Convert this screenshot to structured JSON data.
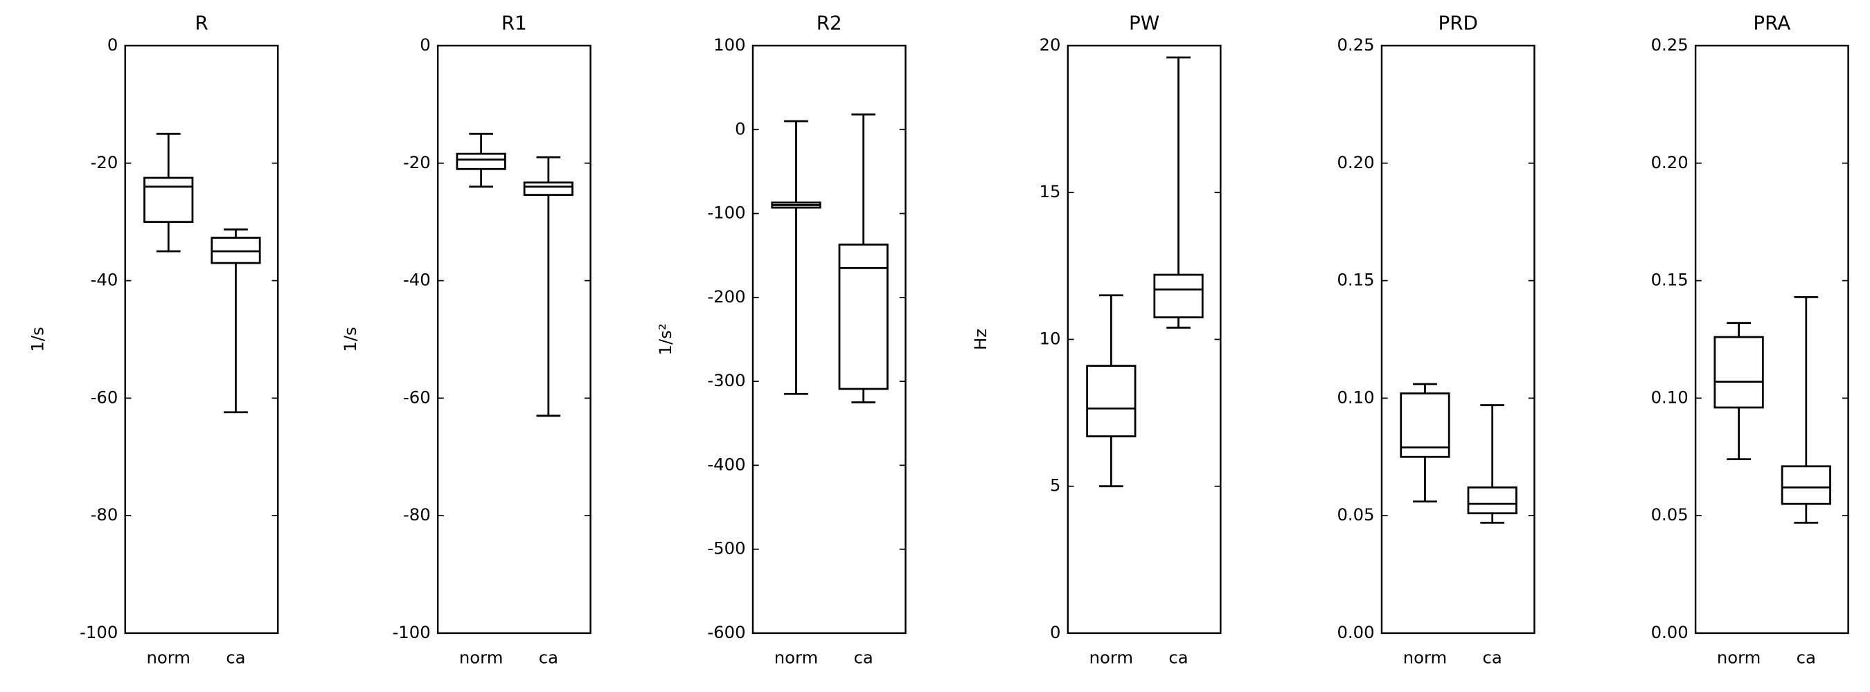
{
  "chart_data": [
    {
      "type": "box",
      "title": "R",
      "ylabel": "1/s",
      "categories": [
        "norm",
        "ca"
      ],
      "ylim": [
        -100,
        0
      ],
      "yticks": [
        -100,
        -80,
        -60,
        -40,
        -20,
        0
      ],
      "boxes": [
        {
          "whisker_low": -35,
          "q1": -30,
          "median": -24,
          "q3": -22.5,
          "whisker_high": -15
        },
        {
          "whisker_low": -62.4,
          "q1": -37,
          "median": -35,
          "q3": -32.7,
          "whisker_high": -31.3
        }
      ]
    },
    {
      "type": "box",
      "title": "R1",
      "ylabel": "1/s",
      "categories": [
        "norm",
        "ca"
      ],
      "ylim": [
        -100,
        0
      ],
      "yticks": [
        -100,
        -80,
        -60,
        -40,
        -20,
        0
      ],
      "boxes": [
        {
          "whisker_low": -24,
          "q1": -21,
          "median": -19.4,
          "q3": -18.4,
          "whisker_high": -15
        },
        {
          "whisker_low": -63,
          "q1": -25.4,
          "median": -24,
          "q3": -23.3,
          "whisker_high": -19
        }
      ]
    },
    {
      "type": "box",
      "title": "R2",
      "ylabel": "1/s²",
      "categories": [
        "norm",
        "ca"
      ],
      "ylim": [
        -600,
        100
      ],
      "yticks": [
        -600,
        -500,
        -400,
        -300,
        -200,
        -100,
        0,
        100
      ],
      "boxes": [
        {
          "whisker_low": -315,
          "q1": -93,
          "median": -90,
          "q3": -87,
          "whisker_high": 10
        },
        {
          "whisker_low": -325,
          "q1": -309,
          "median": -165,
          "q3": -137,
          "whisker_high": 18
        }
      ]
    },
    {
      "type": "box",
      "title": "PW",
      "ylabel": "Hz",
      "categories": [
        "norm",
        "ca"
      ],
      "ylim": [
        0,
        20
      ],
      "yticks": [
        0,
        5,
        10,
        15,
        20
      ],
      "boxes": [
        {
          "whisker_low": 5.0,
          "q1": 6.7,
          "median": 7.65,
          "q3": 9.1,
          "whisker_high": 11.5
        },
        {
          "whisker_low": 10.4,
          "q1": 10.75,
          "median": 11.7,
          "q3": 12.2,
          "whisker_high": 19.6
        }
      ]
    },
    {
      "type": "box",
      "title": "PRD",
      "categories": [
        "norm",
        "ca"
      ],
      "ylim": [
        0,
        0.25
      ],
      "yticks": [
        {
          "value": 0,
          "label": "0.00"
        },
        0.05,
        {
          "value": 0.1,
          "label": "0.10"
        },
        0.15,
        {
          "value": 0.2,
          "label": "0.20"
        },
        0.25
      ],
      "boxes": [
        {
          "whisker_low": 0.056,
          "q1": 0.075,
          "median": 0.079,
          "q3": 0.102,
          "whisker_high": 0.106
        },
        {
          "whisker_low": 0.047,
          "q1": 0.051,
          "median": 0.055,
          "q3": 0.062,
          "whisker_high": 0.097
        }
      ]
    },
    {
      "type": "box",
      "title": "PRA",
      "categories": [
        "norm",
        "ca"
      ],
      "ylim": [
        0,
        0.25
      ],
      "yticks": [
        {
          "value": 0,
          "label": "0.00"
        },
        0.05,
        {
          "value": 0.1,
          "label": "0.10"
        },
        0.15,
        {
          "value": 0.2,
          "label": "0.20"
        },
        0.25
      ],
      "boxes": [
        {
          "whisker_low": 0.074,
          "q1": 0.096,
          "median": 0.107,
          "q3": 0.126,
          "whisker_high": 0.132
        },
        {
          "whisker_low": 0.047,
          "q1": 0.055,
          "median": 0.062,
          "q3": 0.071,
          "whisker_high": 0.143
        }
      ]
    }
  ]
}
